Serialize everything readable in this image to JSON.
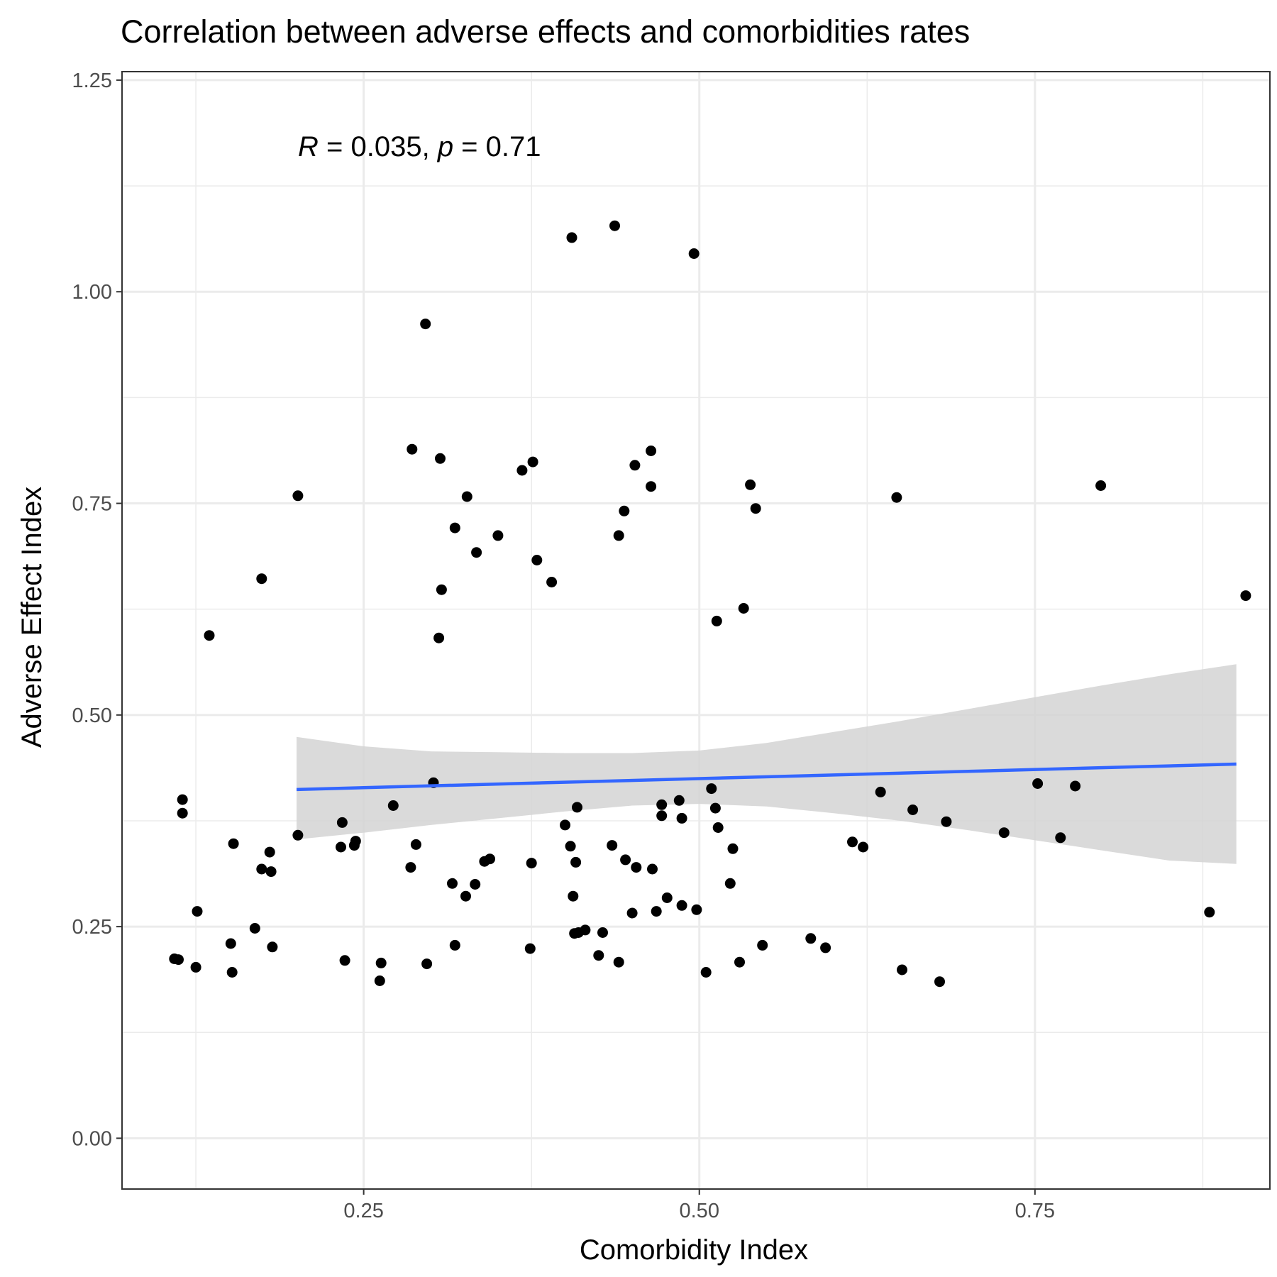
{
  "chart_data": {
    "type": "scatter",
    "title": "Correlation between adverse effects and comorbidities rates",
    "xlabel": "Comorbidity Index",
    "ylabel": "Adverse Effect Index",
    "xlim": [
      0.07,
      0.925
    ],
    "ylim": [
      -0.06,
      1.26
    ],
    "x_ticks": [
      0.25,
      0.5,
      0.75
    ],
    "y_ticks": [
      0.0,
      0.25,
      0.5,
      0.75,
      1.0,
      1.25
    ],
    "x_tick_labels": [
      "0.25",
      "0.50",
      "0.75"
    ],
    "y_tick_labels": [
      "0.00",
      "0.25",
      "0.50",
      "0.75",
      "1.00",
      "1.25"
    ],
    "grid": true,
    "annotation": {
      "r_symbol": "R",
      "r_text": " = 0.035, ",
      "p_symbol": "p",
      "p_text": " = 0.71"
    },
    "points": [
      [
        0.109,
        0.212
      ],
      [
        0.112,
        0.211
      ],
      [
        0.115,
        0.4
      ],
      [
        0.115,
        0.384
      ],
      [
        0.125,
        0.202
      ],
      [
        0.126,
        0.268
      ],
      [
        0.135,
        0.594
      ],
      [
        0.151,
        0.23
      ],
      [
        0.152,
        0.196
      ],
      [
        0.153,
        0.348
      ],
      [
        0.169,
        0.248
      ],
      [
        0.174,
        0.661
      ],
      [
        0.174,
        0.318
      ],
      [
        0.18,
        0.338
      ],
      [
        0.181,
        0.315
      ],
      [
        0.182,
        0.226
      ],
      [
        0.201,
        0.358
      ],
      [
        0.201,
        0.759
      ],
      [
        0.233,
        0.344
      ],
      [
        0.234,
        0.373
      ],
      [
        0.236,
        0.21
      ],
      [
        0.243,
        0.346
      ],
      [
        0.244,
        0.351
      ],
      [
        0.262,
        0.186
      ],
      [
        0.263,
        0.207
      ],
      [
        0.272,
        0.393
      ],
      [
        0.285,
        0.32
      ],
      [
        0.286,
        0.814
      ],
      [
        0.289,
        0.347
      ],
      [
        0.296,
        0.962
      ],
      [
        0.297,
        0.206
      ],
      [
        0.302,
        0.42
      ],
      [
        0.306,
        0.591
      ],
      [
        0.307,
        0.803
      ],
      [
        0.308,
        0.648
      ],
      [
        0.316,
        0.301
      ],
      [
        0.318,
        0.228
      ],
      [
        0.318,
        0.721
      ],
      [
        0.326,
        0.286
      ],
      [
        0.327,
        0.758
      ],
      [
        0.333,
        0.3
      ],
      [
        0.334,
        0.692
      ],
      [
        0.34,
        0.327
      ],
      [
        0.344,
        0.33
      ],
      [
        0.35,
        0.712
      ],
      [
        0.368,
        0.789
      ],
      [
        0.374,
        0.224
      ],
      [
        0.375,
        0.325
      ],
      [
        0.376,
        0.799
      ],
      [
        0.379,
        0.683
      ],
      [
        0.39,
        0.657
      ],
      [
        0.4,
        0.37
      ],
      [
        0.404,
        0.345
      ],
      [
        0.405,
        1.064
      ],
      [
        0.406,
        0.286
      ],
      [
        0.407,
        0.242
      ],
      [
        0.408,
        0.326
      ],
      [
        0.409,
        0.391
      ],
      [
        0.41,
        0.243
      ],
      [
        0.415,
        0.246
      ],
      [
        0.425,
        0.216
      ],
      [
        0.428,
        0.243
      ],
      [
        0.435,
        0.346
      ],
      [
        0.437,
        1.078
      ],
      [
        0.44,
        0.712
      ],
      [
        0.44,
        0.208
      ],
      [
        0.444,
        0.741
      ],
      [
        0.445,
        0.329
      ],
      [
        0.45,
        0.266
      ],
      [
        0.452,
        0.795
      ],
      [
        0.453,
        0.32
      ],
      [
        0.464,
        0.812
      ],
      [
        0.464,
        0.77
      ],
      [
        0.465,
        0.318
      ],
      [
        0.468,
        0.268
      ],
      [
        0.472,
        0.394
      ],
      [
        0.472,
        0.381
      ],
      [
        0.476,
        0.284
      ],
      [
        0.485,
        0.399
      ],
      [
        0.487,
        0.378
      ],
      [
        0.487,
        0.275
      ],
      [
        0.496,
        1.045
      ],
      [
        0.498,
        0.27
      ],
      [
        0.505,
        0.196
      ],
      [
        0.509,
        0.413
      ],
      [
        0.512,
        0.39
      ],
      [
        0.513,
        0.611
      ],
      [
        0.514,
        0.367
      ],
      [
        0.523,
        0.301
      ],
      [
        0.525,
        0.342
      ],
      [
        0.53,
        0.208
      ],
      [
        0.533,
        0.626
      ],
      [
        0.538,
        0.772
      ],
      [
        0.542,
        0.744
      ],
      [
        0.547,
        0.228
      ],
      [
        0.583,
        0.236
      ],
      [
        0.594,
        0.225
      ],
      [
        0.614,
        0.35
      ],
      [
        0.622,
        0.344
      ],
      [
        0.635,
        0.409
      ],
      [
        0.647,
        0.757
      ],
      [
        0.651,
        0.199
      ],
      [
        0.659,
        0.388
      ],
      [
        0.679,
        0.185
      ],
      [
        0.684,
        0.374
      ],
      [
        0.727,
        0.361
      ],
      [
        0.752,
        0.419
      ],
      [
        0.769,
        0.355
      ],
      [
        0.78,
        0.416
      ],
      [
        0.799,
        0.771
      ],
      [
        0.88,
        0.267
      ],
      [
        0.907,
        0.641
      ]
    ],
    "fit_line": {
      "x": [
        0.2,
        0.9
      ],
      "y": [
        0.412,
        0.442
      ],
      "color": "#3366ff"
    },
    "confidence_band": {
      "color": "#d3d3d3",
      "x": [
        0.2,
        0.25,
        0.3,
        0.35,
        0.4,
        0.45,
        0.5,
        0.55,
        0.6,
        0.65,
        0.7,
        0.75,
        0.8,
        0.85,
        0.9
      ],
      "lower": [
        0.353,
        0.361,
        0.37,
        0.378,
        0.386,
        0.393,
        0.395,
        0.392,
        0.384,
        0.375,
        0.364,
        0.352,
        0.34,
        0.328,
        0.324
      ],
      "upper": [
        0.474,
        0.463,
        0.457,
        0.456,
        0.455,
        0.455,
        0.458,
        0.467,
        0.48,
        0.493,
        0.507,
        0.521,
        0.535,
        0.548,
        0.56
      ]
    },
    "point_color": "#000000"
  }
}
